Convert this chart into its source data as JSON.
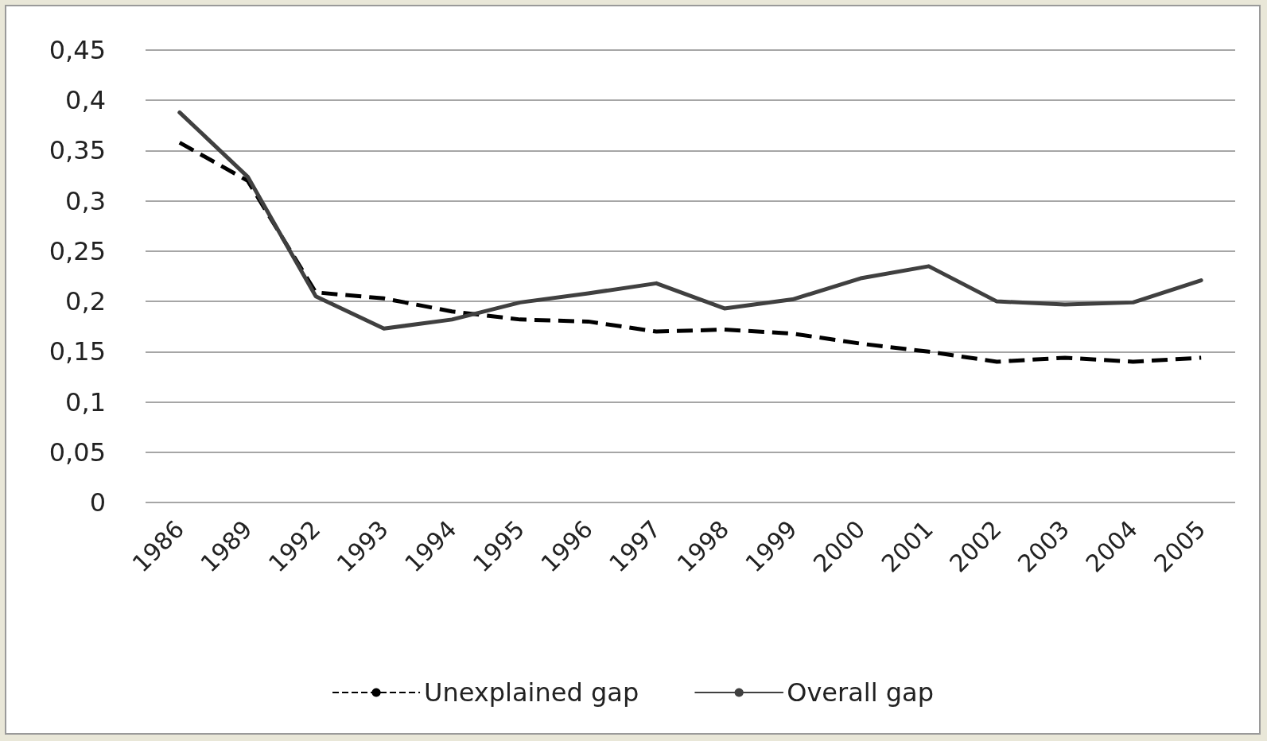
{
  "chart_data": {
    "type": "line",
    "categories": [
      "1986",
      "1989",
      "1992",
      "1993",
      "1994",
      "1995",
      "1996",
      "1997",
      "1998",
      "1999",
      "2000",
      "2001",
      "2002",
      "2003",
      "2004",
      "2005"
    ],
    "series": [
      {
        "name": "Unexplained gap",
        "color": "#000000",
        "line_style": "dashed",
        "values": [
          0.358,
          0.32,
          0.209,
          0.203,
          0.19,
          0.182,
          0.18,
          0.17,
          0.172,
          0.168,
          0.158,
          0.15,
          0.14,
          0.144,
          0.14,
          0.144
        ]
      },
      {
        "name": "Overall gap",
        "color": "#404040",
        "line_style": "solid",
        "values": [
          0.388,
          0.324,
          0.205,
          0.173,
          0.182,
          0.199,
          0.208,
          0.218,
          0.193,
          0.202,
          0.223,
          0.235,
          0.2,
          0.197,
          0.199,
          0.221
        ]
      }
    ],
    "ylim": [
      0,
      0.45
    ],
    "yticks": [
      0,
      {
        "value": 0.05,
        "label": "0,05"
      },
      {
        "value": 0.1,
        "label": "0,1"
      },
      {
        "value": 0.15,
        "label": "0,15"
      },
      {
        "value": 0.2,
        "label": "0,2"
      },
      {
        "value": 0.25,
        "label": "0,25"
      },
      {
        "value": 0.3,
        "label": "0,3"
      },
      {
        "value": 0.35,
        "label": "0,35"
      },
      {
        "value": 0.4,
        "label": "0,4"
      },
      {
        "value": 0.45,
        "label": "0,45"
      }
    ],
    "grid": "y",
    "legend": "bottom",
    "marker": "none"
  }
}
